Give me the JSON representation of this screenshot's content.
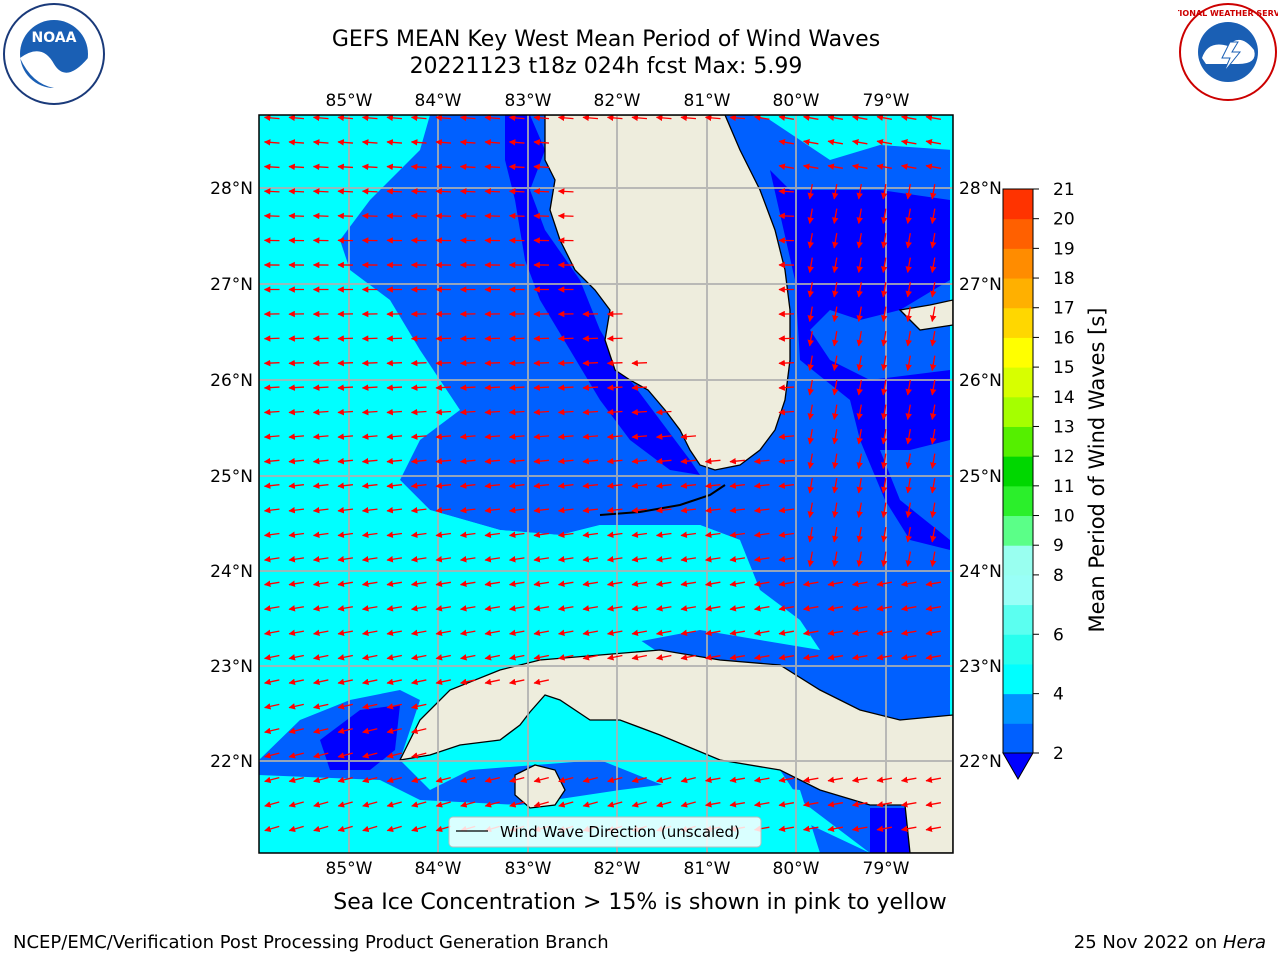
{
  "title": {
    "line1": "GEFS MEAN Key West Mean Period of Wind Waves",
    "line2": "20221123 t18z 024h fcst   Max: 5.99"
  },
  "logos": {
    "noaa": "NOAA",
    "nws": "NATIONAL WEATHER SERVICE"
  },
  "map": {
    "lon_labels": [
      "85°W",
      "84°W",
      "83°W",
      "82°W",
      "81°W",
      "80°W",
      "79°W"
    ],
    "lat_labels": [
      "28°N",
      "27°N",
      "26°N",
      "25°N",
      "24°N",
      "23°N",
      "22°N"
    ],
    "extent": {
      "lon": [
        -85.97,
        -78.43
      ],
      "lat": [
        21.03,
        28.75
      ]
    },
    "legend_label": "Wind Wave Direction (unscaled)",
    "arrow_color": "#ff0000",
    "land_color": "#eeeddd",
    "gridlines": true
  },
  "colorbar": {
    "label": "Mean Period of Wind Waves [s]",
    "levels": [
      2,
      3,
      4,
      5,
      6,
      7,
      8,
      9,
      10,
      11,
      12,
      13,
      14,
      15,
      16,
      17,
      18,
      19,
      20,
      21
    ],
    "tick_labels": [
      "2",
      "4",
      "6",
      "8",
      "9",
      "10",
      "11",
      "12",
      "13",
      "14",
      "15",
      "16",
      "17",
      "18",
      "19",
      "20",
      "21"
    ],
    "colors": [
      "#0060ff",
      "#0094ff",
      "#00ffff",
      "#27ffee",
      "#5bfff0",
      "#99fff7",
      "#99fff0",
      "#5bff88",
      "#2bef2b",
      "#00d700",
      "#55ef00",
      "#a5ff00",
      "#d7ff00",
      "#ffff00",
      "#ffd700",
      "#ffb000",
      "#ff8c00",
      "#ff6000",
      "#ff3300",
      "#ff0000"
    ],
    "under_color": "#0000ff"
  },
  "footer": {
    "ice_note": "Sea Ice Concentration > 15% is shown in pink to yellow",
    "left": "NCEP/EMC/Verification Post Processing Product Generation Branch",
    "right_date": "25 Nov 2022 on ",
    "right_host": "Hera"
  }
}
